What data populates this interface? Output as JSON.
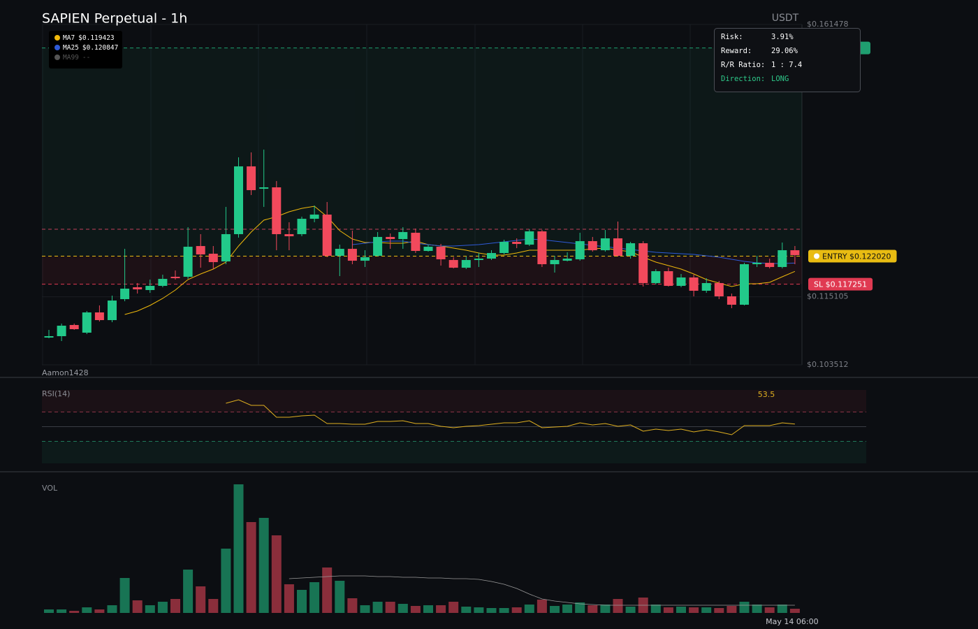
{
  "chart_data": [
    {
      "type": "candlestick",
      "title": "SAPIEN Perpetual - 1h",
      "unit": "USDT",
      "watermark": "Aamon1428",
      "up_color": "#22c98a",
      "down_color": "#f2495c",
      "open": [
        0.108153,
        0.108391,
        0.110295,
        0.108986,
        0.112437,
        0.111128,
        0.114698,
        0.116721,
        0.116245,
        0.116959,
        0.118506,
        0.118506,
        0.123742,
        0.122433,
        0.121124,
        0.125765,
        0.137308,
        0.1335,
        0.133738,
        0.125765,
        0.125765,
        0.128383,
        0.129097,
        0.122076,
        0.123266,
        0.121243,
        0.122076,
        0.125289,
        0.124932,
        0.126003,
        0.122909,
        0.123623,
        0.121362,
        0.120053,
        0.121362,
        0.1216,
        0.122552,
        0.124456,
        0.12398,
        0.126241,
        0.120648,
        0.121243,
        0.121481,
        0.124575,
        0.123028,
        0.125051,
        0.122076,
        0.124218,
        0.117435,
        0.119458,
        0.116959,
        0.118387,
        0.116126,
        0.117435,
        0.115174,
        0.113746,
        0.120648,
        0.120886,
        0.120172,
        0.123028
      ],
      "high": [
        0.109462,
        0.110533,
        0.110533,
        0.112675,
        0.113627,
        0.115293,
        0.123266,
        0.117435,
        0.11803,
        0.118863,
        0.119577,
        0.126955,
        0.125765,
        0.123742,
        0.130406,
        0.138855,
        0.139688,
        0.140164,
        0.134809,
        0.127788,
        0.12874,
        0.130644,
        0.131239,
        0.12398,
        0.12636,
        0.123028,
        0.126122,
        0.125884,
        0.126955,
        0.126717,
        0.12398,
        0.124099,
        0.121838,
        0.121957,
        0.122552,
        0.123028,
        0.124813,
        0.125051,
        0.126598,
        0.126479,
        0.122076,
        0.122671,
        0.126003,
        0.125289,
        0.126479,
        0.127907,
        0.124456,
        0.124575,
        0.119815,
        0.120053,
        0.118982,
        0.118863,
        0.118268,
        0.117792,
        0.11565,
        0.120886,
        0.122076,
        0.1216,
        0.124337,
        0.123742
      ],
      "low": [
        0.108034,
        0.107558,
        0.109462,
        0.108748,
        0.11089,
        0.110771,
        0.114341,
        0.11565,
        0.115769,
        0.116721,
        0.11803,
        0.118149,
        0.120053,
        0.119815,
        0.120648,
        0.12517,
        0.132429,
        0.130406,
        0.123028,
        0.123028,
        0.125408,
        0.127788,
        0.121838,
        0.118625,
        0.120648,
        0.120172,
        0.121957,
        0.123266,
        0.123266,
        0.122552,
        0.12279,
        0.12041,
        0.119934,
        0.119815,
        0.120172,
        0.121362,
        0.122314,
        0.123385,
        0.123742,
        0.120172,
        0.11922,
        0.121124,
        0.121243,
        0.12279,
        0.12279,
        0.121957,
        0.1216,
        0.11684,
        0.117197,
        0.11684,
        0.116721,
        0.115174,
        0.115769,
        0.114698,
        0.113151,
        0.113627,
        0.120172,
        0.119934,
        0.119934,
        0.120648
      ],
      "close": [
        0.108391,
        0.110176,
        0.109581,
        0.112437,
        0.111128,
        0.11446,
        0.116483,
        0.116364,
        0.116959,
        0.118149,
        0.118268,
        0.123623,
        0.122314,
        0.121005,
        0.125765,
        0.137308,
        0.133262,
        0.133738,
        0.125765,
        0.125408,
        0.128383,
        0.129097,
        0.122076,
        0.123266,
        0.121243,
        0.121838,
        0.125289,
        0.124932,
        0.126122,
        0.122909,
        0.123623,
        0.121481,
        0.120053,
        0.121362,
        0.1216,
        0.122552,
        0.124456,
        0.124099,
        0.126241,
        0.120648,
        0.121362,
        0.1216,
        0.124575,
        0.123028,
        0.125051,
        0.122076,
        0.124218,
        0.117435,
        0.119458,
        0.116959,
        0.118387,
        0.116126,
        0.117435,
        0.115174,
        0.113746,
        0.120648,
        0.120886,
        0.120172,
        0.123028,
        0.122195
      ],
      "series": [
        {
          "name": "MA7",
          "color": "#f0b90b",
          "value_label": "$0.119423",
          "values": [
            null,
            null,
            null,
            null,
            null,
            null,
            0.11208,
            0.112675,
            0.113627,
            0.114817,
            0.116245,
            0.11803,
            0.118982,
            0.119815,
            0.121005,
            0.123742,
            0.126122,
            0.128145,
            0.12874,
            0.129573,
            0.130168,
            0.130525,
            0.12874,
            0.12636,
            0.124932,
            0.124337,
            0.124337,
            0.124218,
            0.124218,
            0.124575,
            0.12398,
            0.123742,
            0.123385,
            0.123028,
            0.122552,
            0.122195,
            0.122195,
            0.122552,
            0.123028,
            0.123028,
            0.123028,
            0.123028,
            0.123028,
            0.123266,
            0.123385,
            0.123028,
            0.12279,
            0.121838,
            0.121005,
            0.12041,
            0.119815,
            0.118982,
            0.11803,
            0.117435,
            0.11684,
            0.117316,
            0.117316,
            0.117554,
            0.118506,
            0.119423
          ]
        },
        {
          "name": "MA25",
          "color": "#2f5bd8",
          "value_label": "$0.120847",
          "values": [
            null,
            null,
            null,
            null,
            null,
            null,
            null,
            null,
            null,
            null,
            null,
            null,
            null,
            null,
            null,
            null,
            null,
            null,
            null,
            null,
            null,
            null,
            null,
            null,
            0.12398,
            0.124218,
            0.124456,
            0.124575,
            0.124575,
            0.124218,
            0.12398,
            0.123742,
            0.123742,
            0.123861,
            0.12398,
            0.124218,
            0.124456,
            0.124694,
            0.124932,
            0.124813,
            0.124575,
            0.124337,
            0.124099,
            0.123861,
            0.123623,
            0.123385,
            0.123147,
            0.122909,
            0.122671,
            0.122552,
            0.122433,
            0.122314,
            0.122076,
            0.121838,
            0.121481,
            0.121124,
            0.120886,
            0.120767,
            0.120767,
            0.120847
          ]
        },
        {
          "name": "MA99",
          "color": "#555555",
          "value_label": "--"
        }
      ],
      "levels": [
        {
          "value": 0.15748,
          "color": "#1f9e70"
        },
        {
          "value": 0.126604,
          "color": "#c2415a"
        },
        {
          "value": 0.12202,
          "label": "ENTRY $0.122020",
          "color": "#e9bc12"
        },
        {
          "value": 0.117251,
          "label": "SL $0.117251",
          "color": "#e03a52"
        }
      ],
      "trade_info": [
        {
          "label": "Risk:",
          "text": "3.91%"
        },
        {
          "label": "Reward:",
          "text": "29.06%"
        },
        {
          "label": "R/R Ratio:",
          "text": "1 : 7.4"
        },
        {
          "label": "Direction:",
          "text": "LONG"
        }
      ],
      "ylim": [
        0.103512,
        0.161478
      ],
      "yticks": [
        {
          "value": 0.161478,
          "label": "$0.161478"
        },
        {
          "value": 0.115105,
          "label": "$0.115105"
        },
        {
          "value": 0.103512,
          "label": "$0.103512"
        }
      ]
    },
    {
      "type": "line",
      "title": "RSI(14)",
      "color": "#e0b020",
      "values": [
        null,
        null,
        null,
        null,
        null,
        null,
        null,
        null,
        null,
        null,
        null,
        null,
        null,
        null,
        81.9,
        86.7,
        79,
        79,
        62.9,
        62.9,
        64.8,
        65.7,
        54.3,
        54.3,
        53.3,
        53.3,
        57.1,
        57.1,
        58.1,
        54.3,
        54.3,
        50.5,
        48.6,
        50.5,
        51.4,
        53.3,
        55.2,
        55.2,
        58.1,
        48.6,
        49.5,
        50.5,
        55.2,
        52.4,
        54.3,
        50.5,
        52.4,
        43.8,
        46.7,
        44.8,
        46.7,
        42.9,
        45.7,
        42.9,
        39,
        51.4,
        51.4,
        51.4,
        55.2,
        53.5
      ],
      "levels": [
        {
          "value": 70,
          "color": "#8a3346"
        },
        {
          "value": 50,
          "color": "#3a3d44"
        },
        {
          "value": 30,
          "color": "#1f7a5a"
        }
      ],
      "ylim": [
        0,
        100
      ]
    },
    {
      "type": "bar",
      "title": "VOL",
      "categories": [
        null,
        null,
        null,
        null,
        null,
        null,
        null,
        null,
        null,
        null,
        null,
        null,
        null,
        null,
        null,
        null,
        null,
        null,
        null,
        null,
        null,
        null,
        null,
        null,
        null,
        null,
        null,
        null,
        null,
        null,
        null,
        null,
        null,
        null,
        null,
        null,
        null,
        null,
        null,
        null,
        null,
        null,
        null,
        null,
        null,
        null,
        null,
        null,
        null,
        null,
        null,
        null,
        null,
        null,
        null,
        null,
        null,
        null,
        null,
        "May 14 06:00"
      ],
      "values": [
        5,
        5,
        3,
        8,
        5,
        11,
        50,
        18,
        11,
        16,
        20,
        62,
        38,
        20,
        92,
        184,
        130,
        136,
        111,
        41,
        33,
        44,
        65,
        46,
        21,
        11,
        16,
        16,
        13,
        10,
        11,
        11,
        16,
        9,
        8,
        7,
        7,
        8,
        12,
        19,
        10,
        12,
        15,
        11,
        12,
        20,
        9,
        22,
        12,
        8,
        9,
        8,
        8,
        7,
        10,
        16,
        12,
        8,
        12,
        6
      ],
      "ma": {
        "color": "#9a9a9a",
        "values": [
          null,
          null,
          null,
          null,
          null,
          null,
          null,
          null,
          null,
          null,
          null,
          null,
          null,
          null,
          null,
          null,
          null,
          null,
          null,
          49,
          50,
          51,
          52,
          53,
          53,
          53,
          52,
          52,
          51,
          51,
          50,
          50,
          49,
          49,
          48,
          45,
          41,
          35,
          27,
          20,
          17,
          15,
          13,
          12,
          11,
          11,
          11,
          11,
          11,
          11,
          11,
          11,
          11,
          11,
          11,
          11,
          11,
          11,
          11,
          11
        ]
      },
      "ylim": [
        0,
        190
      ]
    }
  ]
}
